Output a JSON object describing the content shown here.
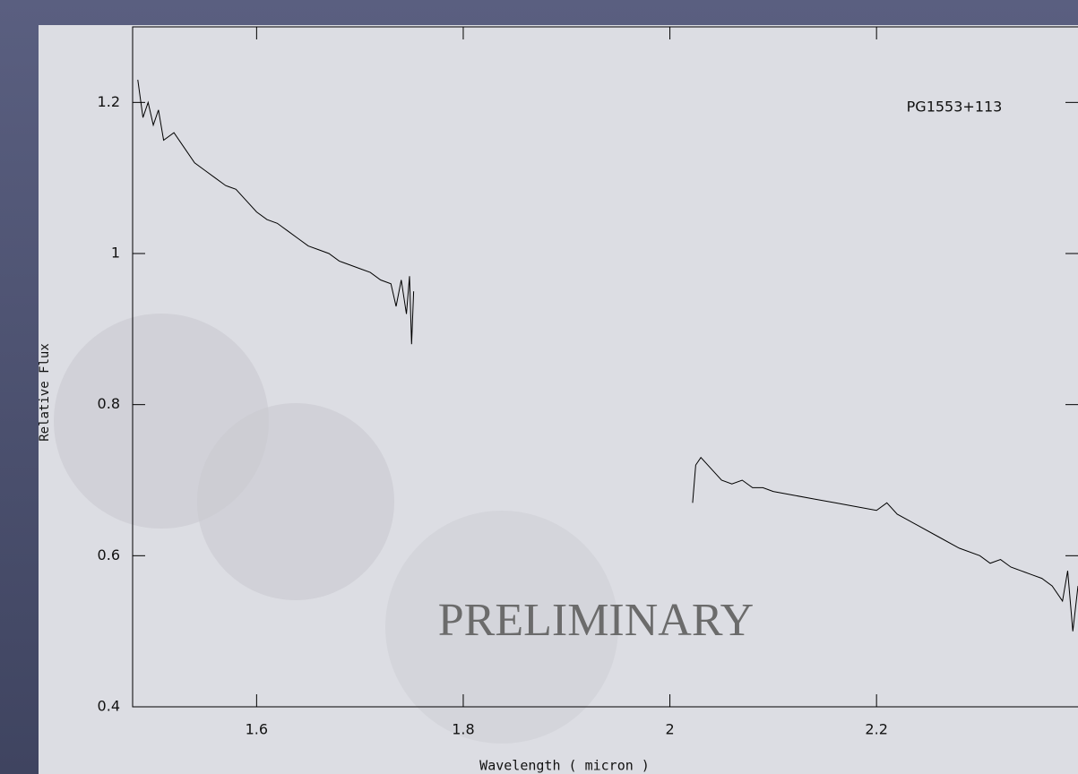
{
  "chart_data": {
    "type": "line",
    "annotation": "PG1553+113",
    "watermark": "PRELIMINARY",
    "x_label": "Wavelength ( micron )",
    "y_label": "Relative Flux",
    "x": [
      1.485,
      1.49,
      1.495,
      1.5,
      1.505,
      1.51,
      1.52,
      1.53,
      1.54,
      1.55,
      1.56,
      1.57,
      1.58,
      1.59,
      1.6,
      1.61,
      1.62,
      1.63,
      1.64,
      1.65,
      1.66,
      1.67,
      1.68,
      1.69,
      1.7,
      1.71,
      1.72,
      1.73,
      1.735,
      1.74,
      1.745,
      1.748,
      1.75,
      1.752,
      1.9,
      2.022,
      2.025,
      2.03,
      2.04,
      2.05,
      2.06,
      2.07,
      2.08,
      2.09,
      2.1,
      2.12,
      2.14,
      2.16,
      2.18,
      2.2,
      2.21,
      2.22,
      2.24,
      2.26,
      2.28,
      2.3,
      2.31,
      2.32,
      2.33,
      2.34,
      2.35,
      2.36,
      2.37,
      2.38,
      2.385,
      2.39,
      2.395
    ],
    "series": [
      {
        "color": "#000000",
        "values": [
          1.23,
          1.18,
          1.2,
          1.17,
          1.19,
          1.15,
          1.16,
          1.14,
          1.12,
          1.11,
          1.1,
          1.09,
          1.085,
          1.07,
          1.055,
          1.045,
          1.04,
          1.03,
          1.02,
          1.01,
          1.005,
          1.0,
          0.99,
          0.985,
          0.98,
          0.975,
          0.965,
          0.96,
          0.93,
          0.965,
          0.92,
          0.97,
          0.88,
          0.95,
          null,
          0.67,
          0.72,
          0.73,
          0.715,
          0.7,
          0.695,
          0.7,
          0.69,
          0.69,
          0.685,
          0.68,
          0.675,
          0.67,
          0.665,
          0.66,
          0.67,
          0.655,
          0.64,
          0.625,
          0.61,
          0.6,
          0.59,
          0.595,
          0.585,
          0.58,
          0.575,
          0.57,
          0.56,
          0.54,
          0.58,
          0.5,
          0.56
        ]
      }
    ],
    "xlim": [
      1.48,
      2.395
    ],
    "ylim": [
      0.4,
      1.3
    ],
    "xticks": [
      1.6,
      1.8,
      2,
      2.2
    ],
    "yticks": [
      0.4,
      0.6,
      0.8,
      1,
      1.2
    ]
  }
}
